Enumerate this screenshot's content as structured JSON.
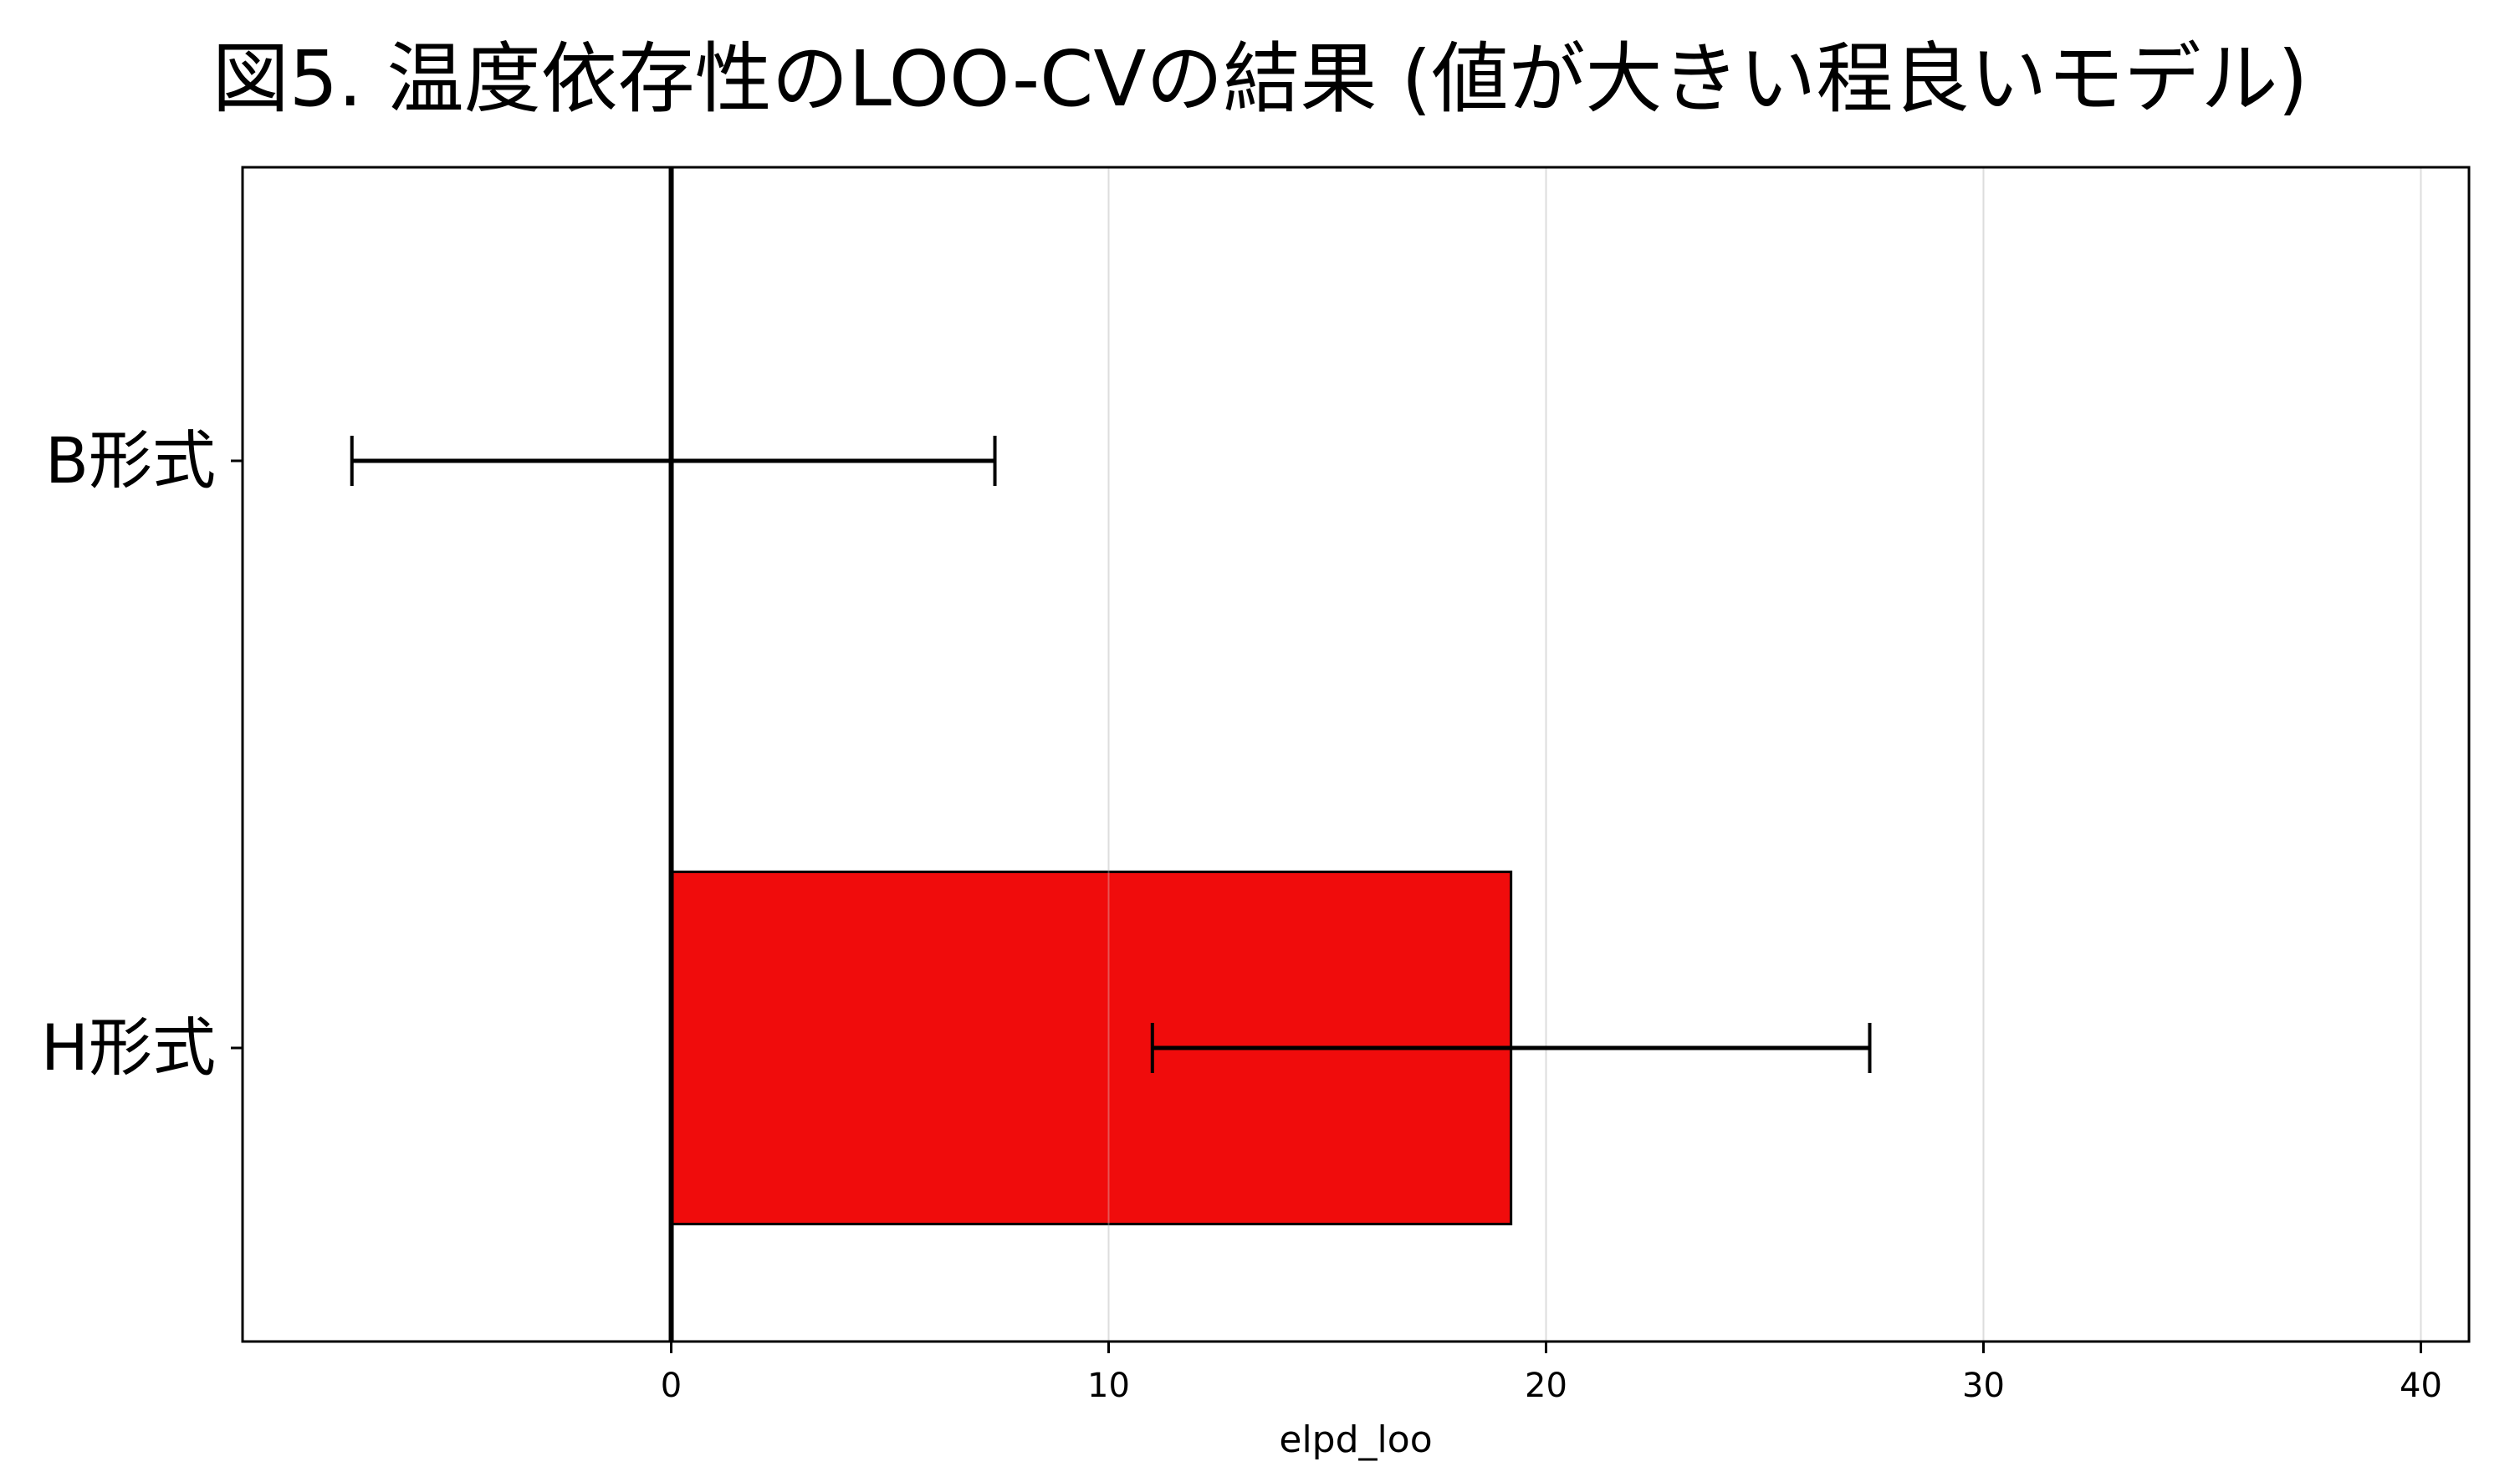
{
  "chart_data": {
    "type": "bar",
    "orientation": "horizontal",
    "title": "図5. 温度依存性のLOO-CVの結果 (値が大きい程良いモデル)",
    "xlabel": "elpd_loo",
    "ylabel": "",
    "xlim": [
      -9.8,
      41.1
    ],
    "xticks": [
      0,
      10,
      20,
      30,
      40
    ],
    "xtick_labels": [
      "0",
      "10",
      "20",
      "30",
      "40"
    ],
    "categories": [
      "B形式",
      "H形式"
    ],
    "values": [
      0,
      19.2
    ],
    "error_low": [
      -7.3,
      11.0
    ],
    "error_high": [
      7.4,
      27.4
    ],
    "bar_color": "#f00c0c",
    "zero_line": 0,
    "grid": "vertical gridlines at x ticks",
    "legend": "none"
  }
}
